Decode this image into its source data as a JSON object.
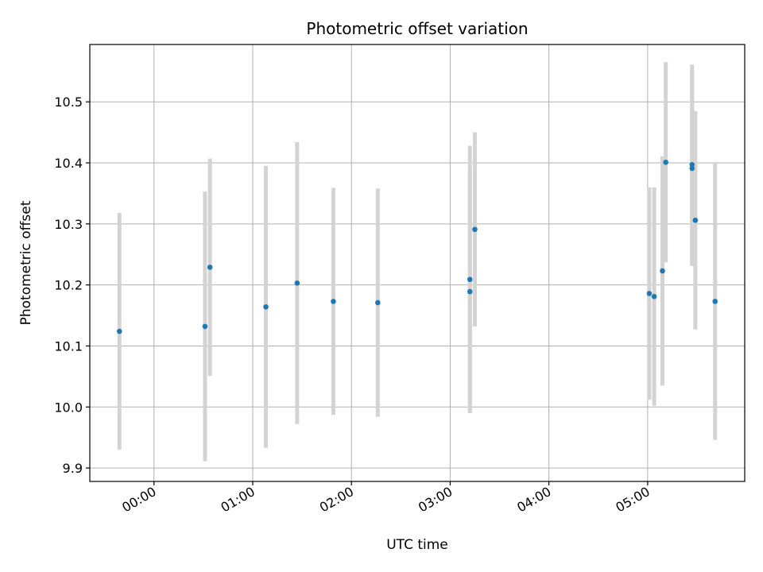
{
  "chart_data": {
    "type": "scatter",
    "title": "Photometric offset variation",
    "xlabel": "UTC time",
    "ylabel": "Photometric offset",
    "x_ticks": [
      "00:00",
      "01:00",
      "02:00",
      "03:00",
      "04:00",
      "05:00"
    ],
    "y_ticks": [
      "9.9",
      "10.0",
      "10.1",
      "10.2",
      "10.3",
      "10.4",
      "10.5"
    ],
    "xlim": [
      "-00:39",
      "05:59"
    ],
    "ylim": [
      9.878,
      10.594
    ],
    "grid": true,
    "legend": "none",
    "point_color": "#1f77b4",
    "errorbar_color": "#d3d3d3",
    "points": [
      {
        "x": "-00:21",
        "y": 10.124,
        "err": 0.194
      },
      {
        "x": "00:31",
        "y": 10.132,
        "err": 0.221
      },
      {
        "x": "00:34",
        "y": 10.229,
        "err": 0.178
      },
      {
        "x": "01:08",
        "y": 10.164,
        "err": 0.231
      },
      {
        "x": "01:27",
        "y": 10.203,
        "err": 0.231
      },
      {
        "x": "01:49",
        "y": 10.173,
        "err": 0.186
      },
      {
        "x": "02:16",
        "y": 10.171,
        "err": 0.187
      },
      {
        "x": "03:12",
        "y": 10.209,
        "err": 0.219
      },
      {
        "x": "03:12",
        "y": 10.189,
        "err": 0.198
      },
      {
        "x": "03:15",
        "y": 10.291,
        "err": 0.159
      },
      {
        "x": "05:01",
        "y": 10.186,
        "err": 0.174
      },
      {
        "x": "05:04",
        "y": 10.181,
        "err": 0.179
      },
      {
        "x": "05:09",
        "y": 10.223,
        "err": 0.188
      },
      {
        "x": "05:11",
        "y": 10.401,
        "err": 0.164
      },
      {
        "x": "05:27",
        "y": 10.397,
        "err": 0.164
      },
      {
        "x": "05:27",
        "y": 10.391,
        "err": 0.16
      },
      {
        "x": "05:29",
        "y": 10.306,
        "err": 0.179
      },
      {
        "x": "05:41",
        "y": 10.173,
        "err": 0.227
      }
    ]
  }
}
